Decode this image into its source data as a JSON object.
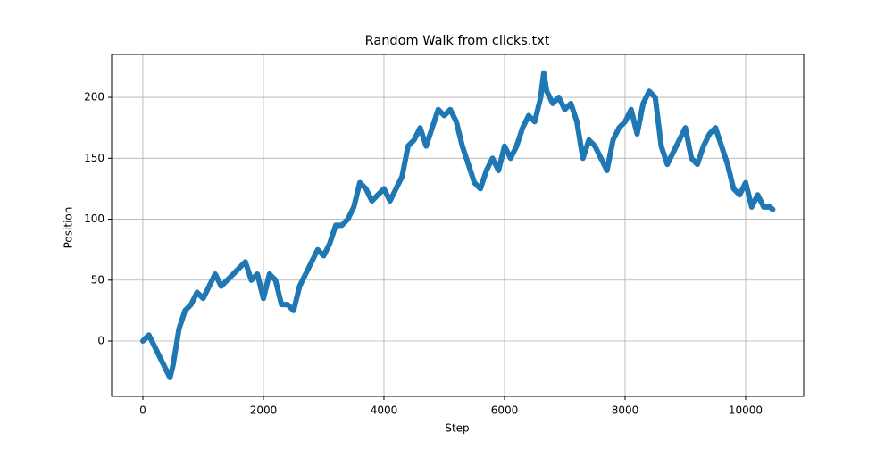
{
  "chart_data": {
    "type": "line",
    "title": "Random Walk from clicks.txt",
    "x_label": "Step",
    "y_label": "Position",
    "x": [
      0,
      100,
      200,
      300,
      400,
      450,
      500,
      600,
      700,
      800,
      900,
      1000,
      1100,
      1200,
      1300,
      1400,
      1500,
      1600,
      1700,
      1800,
      1900,
      2000,
      2100,
      2200,
      2300,
      2400,
      2500,
      2600,
      2700,
      2800,
      2900,
      3000,
      3100,
      3200,
      3300,
      3400,
      3500,
      3600,
      3700,
      3800,
      3900,
      4000,
      4100,
      4200,
      4300,
      4400,
      4500,
      4600,
      4700,
      4800,
      4900,
      5000,
      5100,
      5200,
      5300,
      5400,
      5500,
      5600,
      5700,
      5800,
      5900,
      6000,
      6100,
      6200,
      6300,
      6400,
      6500,
      6600,
      6650,
      6700,
      6800,
      6900,
      7000,
      7100,
      7200,
      7300,
      7400,
      7500,
      7600,
      7700,
      7800,
      7900,
      8000,
      8100,
      8200,
      8300,
      8400,
      8500,
      8600,
      8700,
      8800,
      8900,
      9000,
      9100,
      9200,
      9300,
      9400,
      9500,
      9600,
      9700,
      9800,
      9900,
      10000,
      10100,
      10200,
      10300,
      10400,
      10450
    ],
    "series": [
      {
        "name": "Position",
        "color": "#1f77b4",
        "values": [
          0,
          5,
          -5,
          -15,
          -25,
          -30,
          -20,
          10,
          25,
          30,
          40,
          35,
          45,
          55,
          45,
          50,
          55,
          60,
          65,
          50,
          55,
          35,
          55,
          50,
          30,
          30,
          25,
          45,
          55,
          65,
          75,
          70,
          80,
          95,
          95,
          100,
          110,
          130,
          125,
          115,
          120,
          125,
          115,
          125,
          135,
          160,
          165,
          175,
          160,
          175,
          190,
          185,
          190,
          180,
          160,
          145,
          130,
          125,
          140,
          150,
          140,
          160,
          150,
          160,
          175,
          185,
          180,
          200,
          220,
          205,
          195,
          200,
          190,
          195,
          180,
          150,
          165,
          160,
          150,
          140,
          165,
          175,
          180,
          190,
          170,
          195,
          205,
          200,
          160,
          145,
          155,
          165,
          175,
          150,
          145,
          160,
          170,
          175,
          160,
          145,
          125,
          120,
          130,
          110,
          120,
          110,
          110,
          108
        ]
      }
    ],
    "xlim": [
      -518,
      10963
    ],
    "ylim": [
      -45.4,
      235.2
    ],
    "xticks": [
      0,
      2000,
      4000,
      6000,
      8000,
      10000
    ],
    "yticks": [
      0,
      50,
      100,
      150,
      200
    ],
    "grid": true
  }
}
